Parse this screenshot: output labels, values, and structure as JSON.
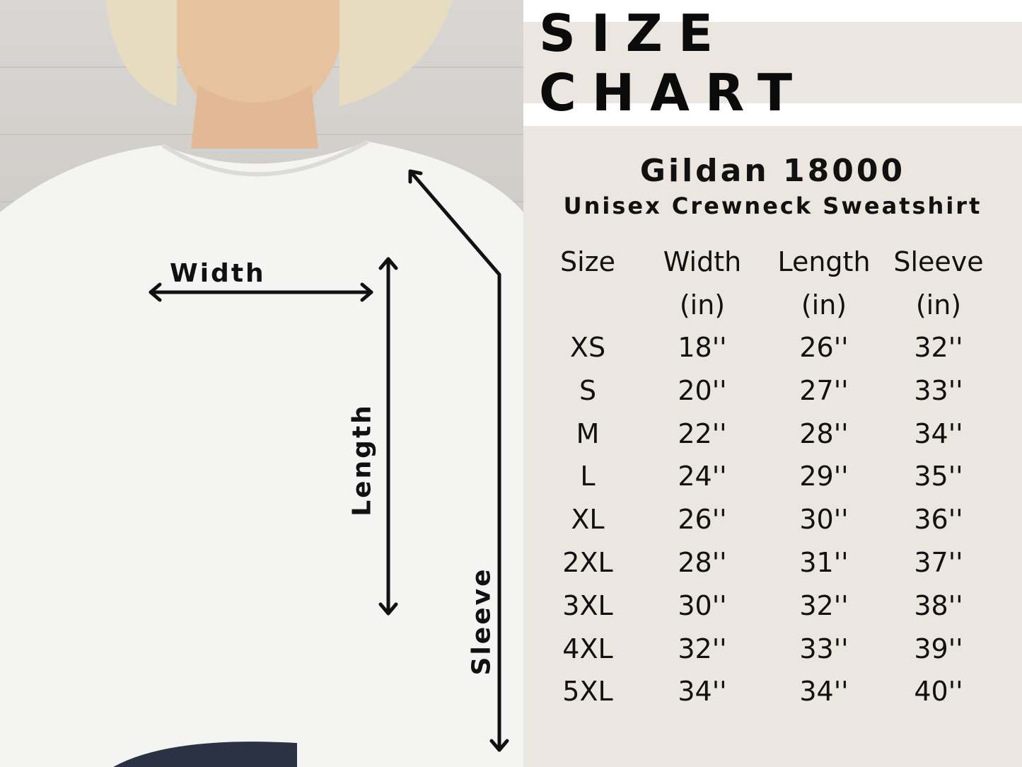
{
  "labels": {
    "width": "Width",
    "length": "Length",
    "sleeve": "Sleeve"
  },
  "title": "SIZE CHART",
  "model": "Gildan 18000",
  "subtitle": "Unisex Crewneck Sweatshirt",
  "colors": {
    "panel": "#ebe7e0",
    "text": "#111111"
  },
  "table": {
    "headers": [
      [
        "Size",
        ""
      ],
      [
        "Width",
        "(in)"
      ],
      [
        "Length",
        "(in)"
      ],
      [
        "Sleeve",
        "(in)"
      ]
    ],
    "rows": [
      [
        "XS",
        "18''",
        "26''",
        "32''"
      ],
      [
        "S",
        "20''",
        "27''",
        "33''"
      ],
      [
        "M",
        "22''",
        "28''",
        "34''"
      ],
      [
        "L",
        "24''",
        "29''",
        "35''"
      ],
      [
        "XL",
        "26''",
        "30''",
        "36''"
      ],
      [
        "2XL",
        "28''",
        "31''",
        "37''"
      ],
      [
        "3XL",
        "30''",
        "32''",
        "38''"
      ],
      [
        "4XL",
        "32''",
        "33''",
        "39''"
      ],
      [
        "5XL",
        "34''",
        "34''",
        "40''"
      ]
    ]
  }
}
